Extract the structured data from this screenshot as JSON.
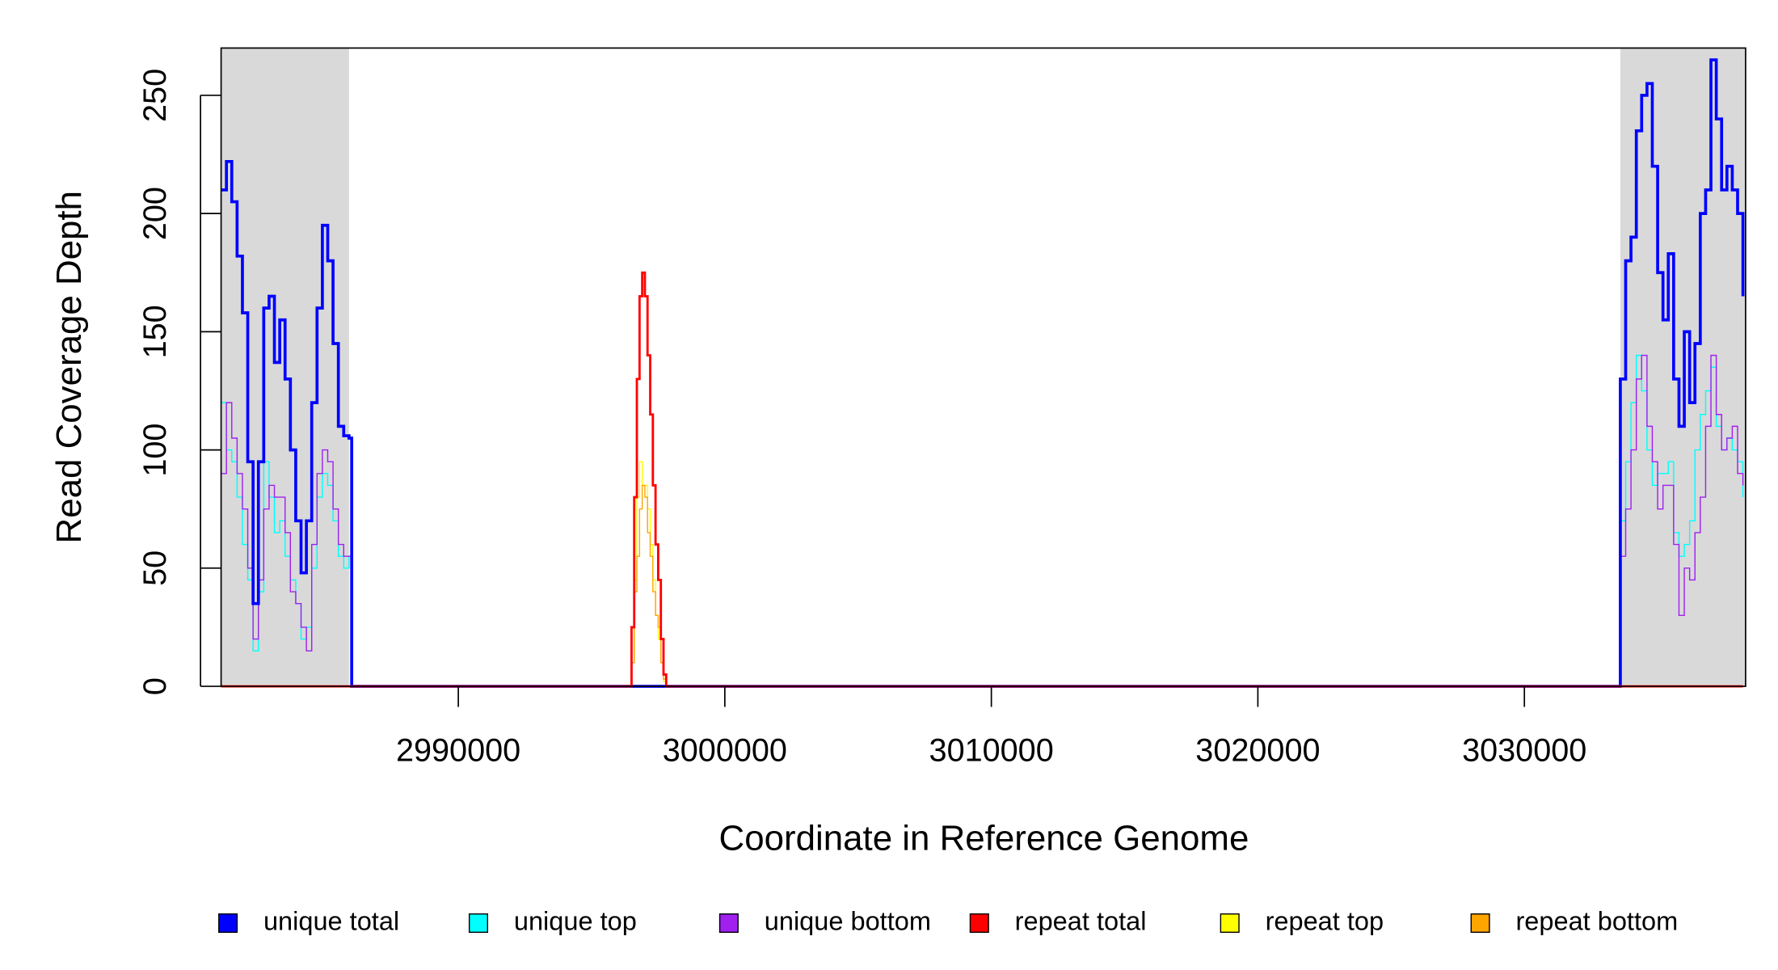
{
  "chart_data": {
    "type": "line",
    "step": true,
    "xlabel": "Coordinate in Reference Genome",
    "ylabel": "Read Coverage Depth",
    "xlim": [
      2981100,
      3038300
    ],
    "ylim": [
      0,
      270
    ],
    "xticks": [
      2990000,
      3000000,
      3010000,
      3020000,
      3030000
    ],
    "yticks": [
      0,
      50,
      100,
      150,
      200,
      250
    ],
    "shaded_regions": [
      [
        2981100,
        2985900
      ],
      [
        3033600,
        3038300
      ]
    ],
    "shade_color": "#d9d9d9",
    "legend": "bottom",
    "x": [
      2981100,
      2981300,
      2981500,
      2981700,
      2981900,
      2982100,
      2982300,
      2982500,
      2982700,
      2982900,
      2983100,
      2983300,
      2983500,
      2983700,
      2983900,
      2984100,
      2984300,
      2984500,
      2984700,
      2984900,
      2985100,
      2985300,
      2985500,
      2985700,
      2985900,
      2986000,
      2996400,
      2996500,
      2996600,
      2996700,
      2996800,
      2996900,
      2997000,
      2997100,
      2997200,
      2997300,
      2997400,
      2997500,
      2997600,
      2997700,
      2997800,
      2998000,
      3033500,
      3033600,
      3033800,
      3034000,
      3034200,
      3034400,
      3034600,
      3034800,
      3035000,
      3035200,
      3035400,
      3035600,
      3035800,
      3036000,
      3036200,
      3036400,
      3036600,
      3036800,
      3037000,
      3037200,
      3037400,
      3037600,
      3037800,
      3038000,
      3038200
    ],
    "series": [
      {
        "name": "unique total",
        "color": "#0000ff",
        "line_width": 2.6,
        "values": [
          210,
          222,
          205,
          182,
          158,
          95,
          35,
          95,
          160,
          165,
          137,
          155,
          130,
          100,
          70,
          48,
          70,
          120,
          160,
          195,
          180,
          145,
          110,
          106,
          105,
          0,
          0,
          0,
          0,
          0,
          0,
          0,
          0,
          0,
          0,
          0,
          0,
          0,
          0,
          0,
          0,
          0,
          0,
          130,
          180,
          190,
          235,
          250,
          255,
          220,
          175,
          155,
          183,
          130,
          110,
          150,
          120,
          145,
          200,
          210,
          265,
          240,
          210,
          220,
          210,
          200,
          165
        ]
      },
      {
        "name": "unique top",
        "color": "#00ffff",
        "line_width": 1,
        "values": [
          120,
          100,
          95,
          80,
          60,
          45,
          15,
          40,
          95,
          80,
          65,
          70,
          55,
          45,
          35,
          20,
          25,
          50,
          80,
          90,
          85,
          70,
          55,
          50,
          55,
          0,
          0,
          0,
          0,
          0,
          0,
          0,
          0,
          0,
          0,
          0,
          0,
          0,
          0,
          0,
          0,
          0,
          0,
          70,
          95,
          120,
          140,
          125,
          100,
          85,
          90,
          90,
          95,
          65,
          55,
          60,
          70,
          100,
          115,
          125,
          135,
          110,
          100,
          105,
          100,
          95,
          80
        ]
      },
      {
        "name": "unique bottom",
        "color": "#a020f0",
        "line_width": 1,
        "values": [
          90,
          120,
          105,
          90,
          75,
          50,
          20,
          45,
          75,
          85,
          80,
          80,
          65,
          40,
          35,
          25,
          15,
          60,
          90,
          100,
          95,
          75,
          60,
          55,
          55,
          0,
          0,
          0,
          0,
          0,
          0,
          0,
          0,
          0,
          0,
          0,
          0,
          0,
          0,
          0,
          0,
          0,
          0,
          55,
          75,
          100,
          130,
          140,
          110,
          95,
          75,
          85,
          85,
          60,
          30,
          50,
          45,
          65,
          80,
          110,
          140,
          115,
          100,
          105,
          110,
          90,
          85
        ]
      },
      {
        "name": "repeat total",
        "color": "#ff0000",
        "line_width": 2,
        "values": [
          0,
          0,
          0,
          0,
          0,
          0,
          0,
          0,
          0,
          0,
          0,
          0,
          0,
          0,
          0,
          0,
          0,
          0,
          0,
          0,
          0,
          0,
          0,
          0,
          0,
          0,
          0,
          25,
          80,
          130,
          165,
          175,
          165,
          140,
          115,
          85,
          60,
          45,
          20,
          5,
          0,
          0,
          0,
          0,
          0,
          0,
          0,
          0,
          0,
          0,
          0,
          0,
          0,
          0,
          0,
          0,
          0,
          0,
          0,
          0,
          0,
          0,
          0,
          0,
          0,
          0,
          0
        ]
      },
      {
        "name": "repeat top",
        "color": "#ffff00",
        "line_width": 1,
        "values": [
          0,
          0,
          0,
          0,
          0,
          0,
          0,
          0,
          0,
          0,
          0,
          0,
          0,
          0,
          0,
          0,
          0,
          0,
          0,
          0,
          0,
          0,
          0,
          0,
          0,
          0,
          0,
          10,
          45,
          80,
          95,
          85,
          85,
          75,
          60,
          45,
          30,
          20,
          10,
          2,
          0,
          0,
          0,
          0,
          0,
          0,
          0,
          0,
          0,
          0,
          0,
          0,
          0,
          0,
          0,
          0,
          0,
          0,
          0,
          0,
          0,
          0,
          0,
          0,
          0,
          0,
          0
        ]
      },
      {
        "name": "repeat bottom",
        "color": "#ffa500",
        "line_width": 1,
        "values": [
          0,
          0,
          0,
          0,
          0,
          0,
          0,
          0,
          0,
          0,
          0,
          0,
          0,
          0,
          0,
          0,
          0,
          0,
          0,
          0,
          0,
          0,
          0,
          0,
          0,
          0,
          0,
          10,
          40,
          55,
          75,
          85,
          80,
          65,
          55,
          40,
          30,
          25,
          10,
          3,
          0,
          0,
          0,
          0,
          0,
          0,
          0,
          0,
          0,
          0,
          0,
          0,
          0,
          0,
          0,
          0,
          0,
          0,
          0,
          0,
          0,
          0,
          0,
          0,
          0,
          0,
          0
        ]
      }
    ]
  }
}
